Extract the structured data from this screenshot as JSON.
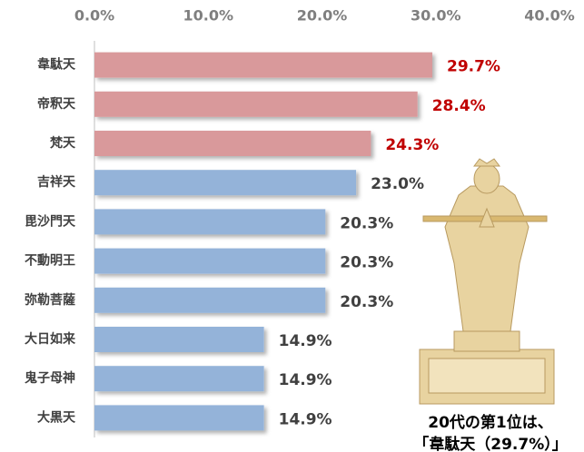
{
  "chart_data": {
    "type": "barh",
    "categories": [
      "韋駄天",
      "帝釈天",
      "梵天",
      "吉祥天",
      "毘沙門天",
      "不動明王",
      "弥勒菩薩",
      "大日如来",
      "鬼子母神",
      "大黒天"
    ],
    "values": [
      29.7,
      28.4,
      24.3,
      23.0,
      20.3,
      20.3,
      20.3,
      14.9,
      14.9,
      14.9
    ],
    "value_labels": [
      "29.7%",
      "28.4%",
      "24.3%",
      "23.0%",
      "20.3%",
      "20.3%",
      "20.3%",
      "14.9%",
      "14.9%",
      "14.9%"
    ],
    "colors": [
      "#d9999b",
      "#d9999b",
      "#d9999b",
      "#94b3d9",
      "#94b3d9",
      "#94b3d9",
      "#94b3d9",
      "#94b3d9",
      "#94b3d9",
      "#94b3d9"
    ],
    "label_colors": [
      "#c00000",
      "#c00000",
      "#c00000",
      "#404040",
      "#404040",
      "#404040",
      "#404040",
      "#404040",
      "#404040",
      "#404040"
    ],
    "xlim": [
      0,
      40
    ],
    "xticks": [
      {
        "value": 0,
        "label": "0.0%"
      },
      {
        "value": 10,
        "label": "10.0%"
      },
      {
        "value": 20,
        "label": "20.0%"
      },
      {
        "value": 30,
        "label": "30.0%"
      },
      {
        "value": 40,
        "label": "40.0%"
      }
    ],
    "annotations": [
      "20代の第1位は、",
      "「韋駄天（29.7%）」"
    ]
  }
}
